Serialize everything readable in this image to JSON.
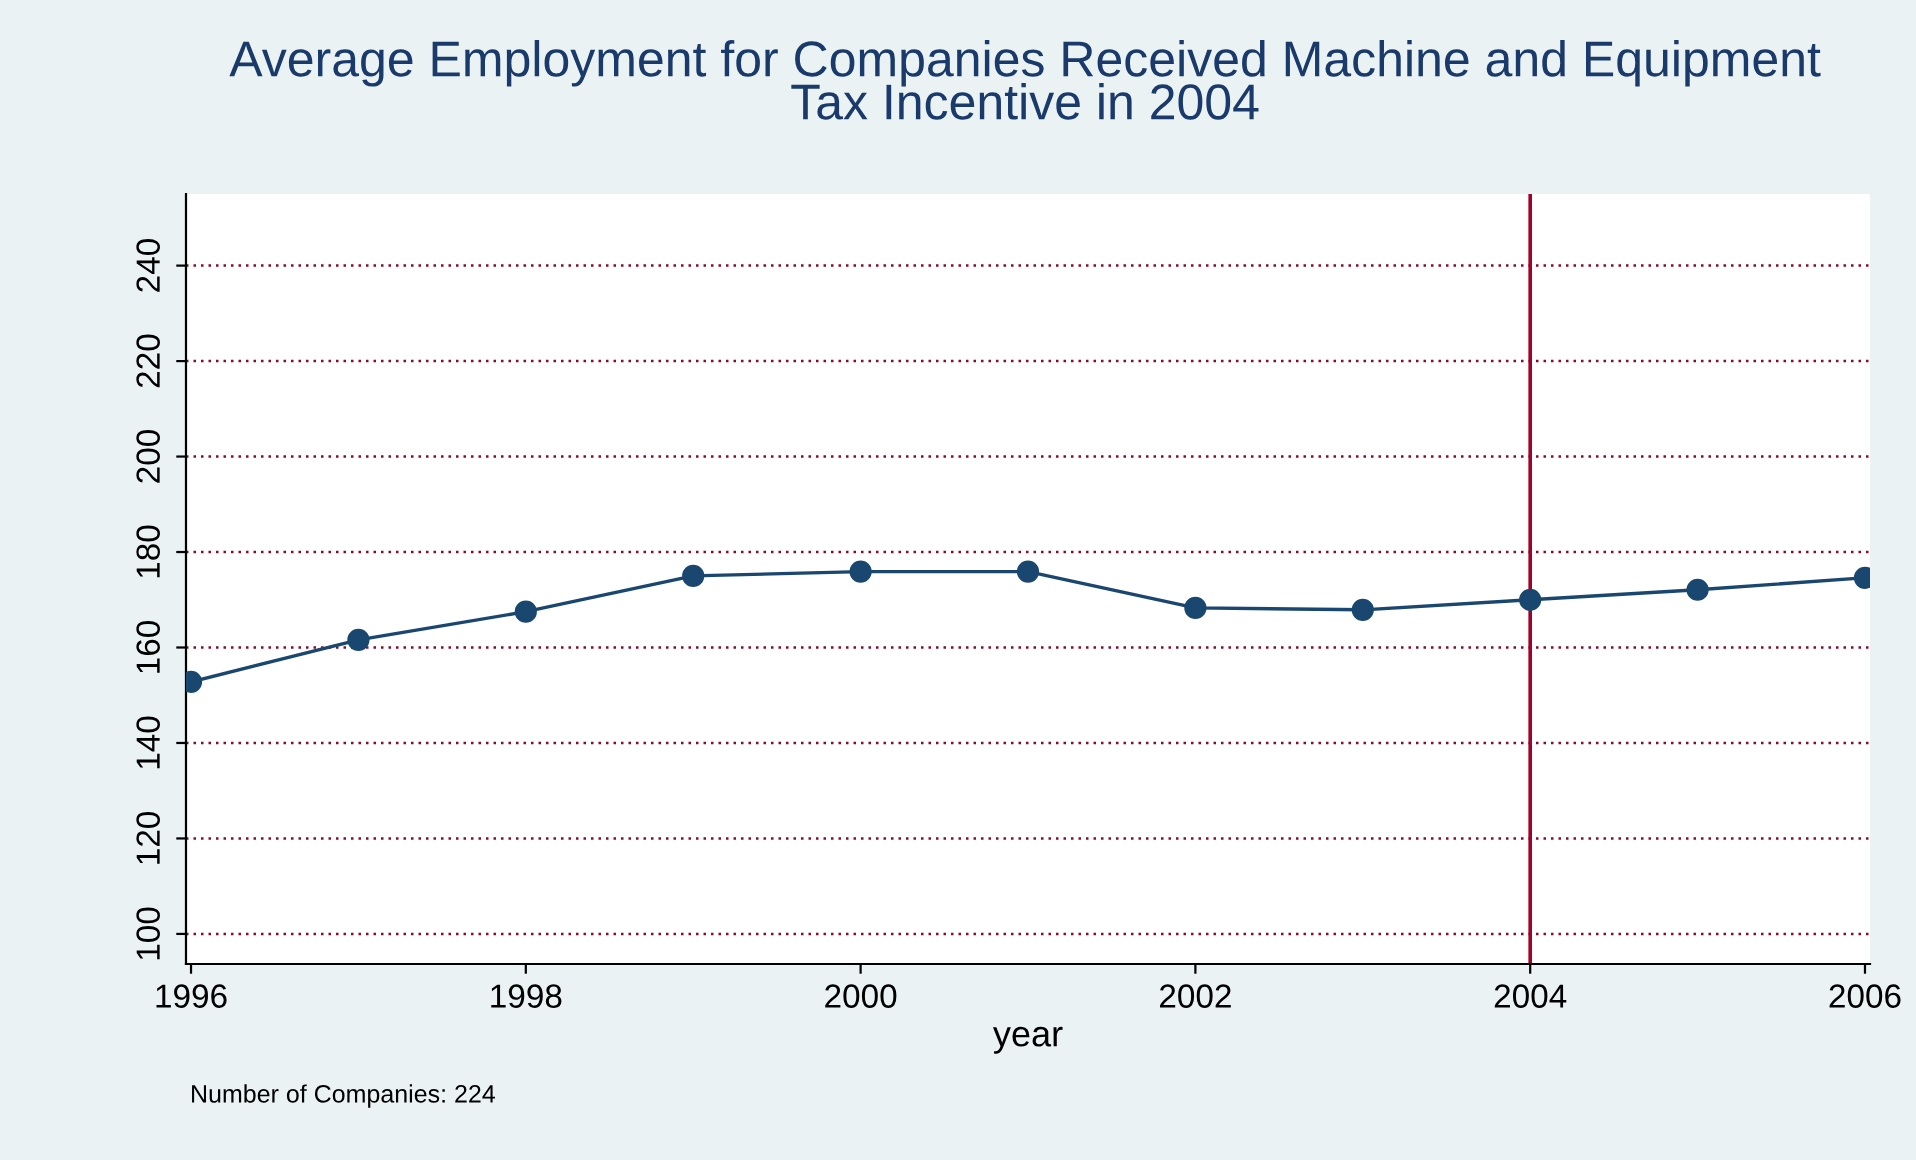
{
  "chart_data": {
    "type": "line",
    "title": "Average Employment for Companies Received Machine and Equipment\nTax Incentive in 2004",
    "xlabel": "year",
    "x": [
      1996,
      1997,
      1998,
      1999,
      2000,
      2001,
      2002,
      2003,
      2004,
      2005,
      2006
    ],
    "series": [
      {
        "color": "#1a476f",
        "values": [
          152.8,
          161.6,
          167.5,
          175.0,
          175.9,
          175.9,
          168.3,
          167.9,
          170.0,
          172.1,
          174.6
        ]
      }
    ],
    "xlim": [
      1995.97,
      2006.03
    ],
    "xticks": [
      1996,
      1998,
      2000,
      2002,
      2004,
      2006
    ],
    "ylim": [
      93.7,
      255
    ],
    "yticks": [
      100,
      120,
      140,
      160,
      180,
      200,
      220,
      240
    ],
    "grid": "y",
    "marker": "circle",
    "line_style": "solid",
    "legend": false,
    "ref_lines": [
      {
        "axis": "x",
        "value": 2004,
        "color": "#a0002a"
      }
    ],
    "annotations": [
      "Number of Companies: 224"
    ]
  }
}
